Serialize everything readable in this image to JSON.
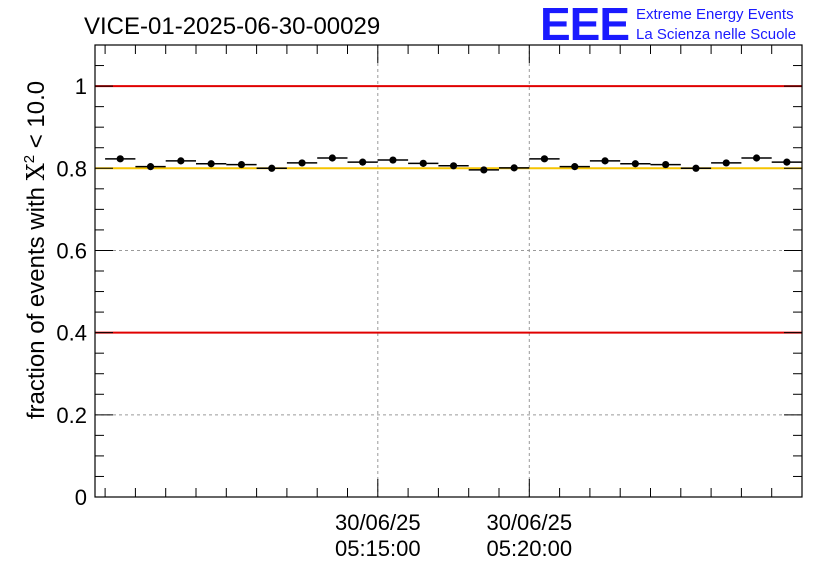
{
  "title": "VICE-01-2025-06-30-00029",
  "logo": {
    "letters": "EEE",
    "line1": "Extreme Energy Events",
    "line2": "La Scienza nelle Scuole",
    "color": "#1a1aff"
  },
  "chart_data": {
    "type": "scatter",
    "title": "VICE-01-2025-06-30-00029",
    "ylabel_main": "fraction of events with ",
    "ylabel_symbol": "X",
    "ylabel_sup": "2",
    "ylabel_tail": " < 10.0",
    "xlabel": "",
    "ylim": [
      0,
      1.1
    ],
    "y_ticks": [
      0,
      0.2,
      0.4,
      0.6,
      0.8,
      1
    ],
    "y_tick_labels": [
      "0",
      "0.2",
      "0.4",
      "0.6",
      "0.8",
      "1"
    ],
    "xlim_seconds": [
      -560,
      840
    ],
    "x_ticks": [
      {
        "seconds": 0,
        "date": "30/06/25",
        "time": "05:15:00"
      },
      {
        "seconds": 300,
        "date": "30/06/25",
        "time": "05:20:00"
      }
    ],
    "x_minor_step_seconds": 60,
    "grid": true,
    "reference_lines": [
      {
        "y": 1.0,
        "color": "#e00000"
      },
      {
        "y": 0.4,
        "color": "#e00000"
      },
      {
        "y": 0.8,
        "color": "#f5c400"
      }
    ],
    "bin_width_seconds": 60,
    "series": [
      {
        "x_seconds": [
          -510,
          -450,
          -390,
          -330,
          -270,
          -210,
          -150,
          -90,
          -30,
          30,
          90,
          150,
          210,
          270,
          330,
          390,
          450,
          510,
          570,
          630,
          690,
          750,
          810
        ],
        "y": [
          0.823,
          0.804,
          0.818,
          0.811,
          0.809,
          0.8,
          0.813,
          0.825,
          0.815,
          0.82,
          0.812,
          0.806,
          0.796,
          0.801,
          0.823,
          0.804,
          0.818,
          0.811,
          0.809,
          0.8,
          0.813,
          0.825,
          0.815
        ]
      }
    ],
    "color": "#000000"
  }
}
